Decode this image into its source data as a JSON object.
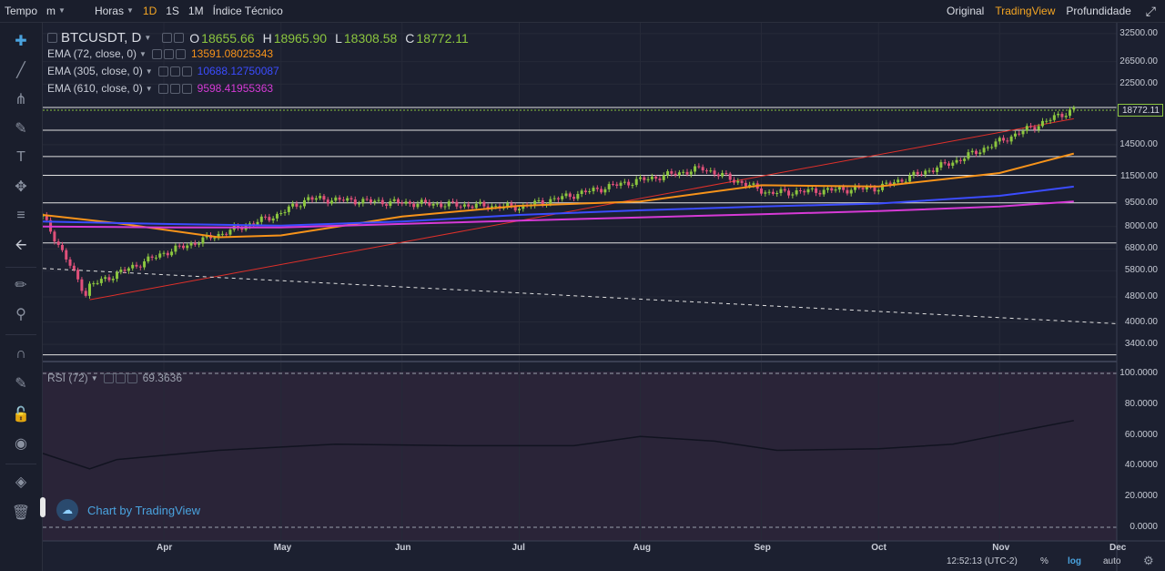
{
  "topbar": {
    "tempo": "Tempo",
    "unit": "m",
    "horas": "Horas",
    "intervals": [
      "1D",
      "1S",
      "1M"
    ],
    "active_interval": "1D",
    "indicators": "Índice Técnico",
    "views": [
      "Original",
      "TradingView",
      "Profundidade"
    ],
    "active_view": "TradingView",
    "colors": {
      "active": "#f5a623"
    }
  },
  "toolbar": {
    "icons": [
      "crosshair-icon",
      "trend-line-icon",
      "pitchfork-icon",
      "brush-icon",
      "text-icon",
      "pattern-icon",
      "fib-icon",
      "back-arrow-icon",
      "ruler-icon",
      "zoom-icon",
      "magnet-icon",
      "lock-pencil-icon",
      "lock-icon",
      "eye-icon",
      "layers-icon",
      "trash-icon"
    ]
  },
  "legend": {
    "symbol": "BTCUSDT, D",
    "ohlc": [
      {
        "label": "O",
        "value": "18655.66"
      },
      {
        "label": "H",
        "value": "18965.90"
      },
      {
        "label": "L",
        "value": "18308.58"
      },
      {
        "label": "C",
        "value": "18772.11"
      }
    ],
    "ema": [
      {
        "label": "EMA (72, close, 0)",
        "value": "13591.08025343",
        "color": "#f7931a"
      },
      {
        "label": "EMA (305, close, 0)",
        "value": "10688.12750087",
        "color": "#3b4cff"
      },
      {
        "label": "EMA (610, close, 0)",
        "value": "9598.41955363",
        "color": "#d63ad6"
      }
    ],
    "rsi": {
      "label": "RSI (72)",
      "value": "69.3636"
    }
  },
  "axes": {
    "price_labels": [
      "32500.00",
      "26500.00",
      "22500.00",
      "18772.11",
      "14500.00",
      "11500.00",
      "9500.00",
      "8000.00",
      "6800.00",
      "5800.00",
      "4800.00",
      "4000.00",
      "3400.00"
    ],
    "rsi_labels": [
      "100.0000",
      "80.0000",
      "60.0000",
      "40.0000",
      "20.0000",
      "0.0000"
    ],
    "x_labels": [
      "Apr",
      "May",
      "Jun",
      "Jul",
      "Aug",
      "Sep",
      "Oct",
      "Nov",
      "Dec"
    ],
    "price_scale": "log"
  },
  "bottom": {
    "time": "12:52:13 (UTC-2)",
    "percent": "%",
    "log": "log",
    "auto": "auto"
  },
  "watermark": "Chart by TradingView",
  "chart_data": {
    "type": "candlestick",
    "title": "BTCUSDT, D",
    "x_range": [
      "2020-03-01",
      "2020-11-20"
    ],
    "ylim": [
      3000,
      34000
    ],
    "yscale": "log",
    "candles_monthly_closes": {
      "x": [
        "2020-03-01",
        "2020-03-12",
        "2020-03-13",
        "2020-04-01",
        "2020-04-30",
        "2020-05-08",
        "2020-06-01",
        "2020-07-01",
        "2020-07-27",
        "2020-08-17",
        "2020-09-03",
        "2020-10-01",
        "2020-10-21",
        "2020-11-05",
        "2020-11-20"
      ],
      "close": [
        8600,
        4900,
        5200,
        6600,
        8700,
        9800,
        9500,
        9200,
        10900,
        12200,
        10200,
        10600,
        12900,
        15600,
        18772.11
      ]
    },
    "series": [
      {
        "name": "EMA (72, close, 0)",
        "color": "#f7931a",
        "x": [
          "2020-03-01",
          "2020-03-20",
          "2020-04-15",
          "2020-05-01",
          "2020-06-01",
          "2020-07-01",
          "2020-08-01",
          "2020-09-01",
          "2020-10-01",
          "2020-11-01",
          "2020-11-20"
        ],
        "values": [
          8700,
          8200,
          7400,
          7500,
          8600,
          9300,
          9600,
          10800,
          10700,
          11800,
          13591.08
        ]
      },
      {
        "name": "EMA (305, close, 0)",
        "color": "#3b4cff",
        "x": [
          "2020-03-01",
          "2020-04-01",
          "2020-05-01",
          "2020-06-01",
          "2020-07-01",
          "2020-08-01",
          "2020-09-01",
          "2020-10-01",
          "2020-11-01",
          "2020-11-20"
        ],
        "values": [
          8300,
          8150,
          8050,
          8300,
          8700,
          9000,
          9250,
          9450,
          10000,
          10688.13
        ]
      },
      {
        "name": "EMA (610, close, 0)",
        "color": "#d63ad6",
        "x": [
          "2020-03-01",
          "2020-04-01",
          "2020-05-01",
          "2020-06-01",
          "2020-07-01",
          "2020-08-01",
          "2020-09-01",
          "2020-10-01",
          "2020-11-01",
          "2020-11-20"
        ],
        "values": [
          8000,
          7950,
          7950,
          8150,
          8350,
          8550,
          8750,
          8950,
          9250,
          9598.42
        ]
      }
    ],
    "horizontal_lines": [
      19000,
      16100,
      13300,
      11600,
      9500,
      7100,
      3150
    ],
    "rsi": {
      "name": "RSI (72)",
      "ylim": [
        0,
        100
      ],
      "x": [
        "2020-03-01",
        "2020-03-13",
        "2020-03-20",
        "2020-04-15",
        "2020-05-15",
        "2020-06-15",
        "2020-07-15",
        "2020-08-01",
        "2020-08-20",
        "2020-09-05",
        "2020-10-01",
        "2020-10-20",
        "2020-11-05",
        "2020-11-20"
      ],
      "values": [
        48,
        38,
        44,
        50,
        54,
        53,
        53,
        59,
        56,
        50,
        51,
        54,
        62,
        69.36
      ]
    }
  }
}
